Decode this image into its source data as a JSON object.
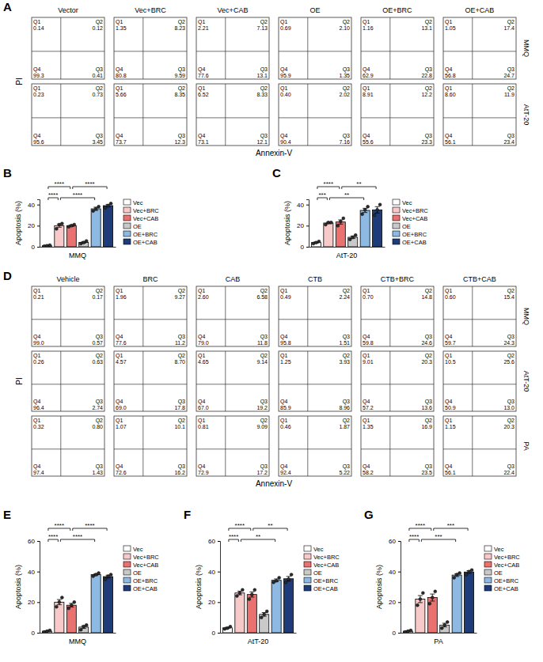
{
  "chart_data": [
    {
      "type": "bar",
      "panel": "B",
      "x_label": "MMQ",
      "y_label": "Apoptosis (%)",
      "categories": [
        "Vec",
        "Vec+BRC",
        "Vec+CAB",
        "OE",
        "OE+BRC",
        "OE+CAB"
      ],
      "colors": [
        "#ffffff",
        "#f7c9c9",
        "#e9716f",
        "#c9c9c9",
        "#8db9e2",
        "#1f3c7a"
      ],
      "values": [
        1.0,
        20,
        20,
        4.2,
        36,
        39
      ],
      "errors": [
        0.4,
        1.5,
        0.8,
        0.8,
        1.5,
        1.2
      ],
      "points": [
        [
          0.5,
          1.0,
          1.5
        ],
        [
          17,
          21,
          22
        ],
        [
          19,
          20,
          21
        ],
        [
          3,
          4,
          5.5
        ],
        [
          34,
          36,
          38
        ],
        [
          37,
          39,
          41
        ]
      ],
      "ylim": [
        0,
        45
      ],
      "yticks": [
        0,
        20,
        40
      ],
      "legend": "right",
      "tick_labels": "y",
      "comparisons": [
        {
          "pair": [
            0,
            1
          ],
          "label": "****"
        },
        {
          "pair": [
            1,
            4
          ],
          "label": "****"
        },
        {
          "pair": [
            0,
            2
          ],
          "label": "****"
        },
        {
          "pair": [
            2,
            5
          ],
          "label": "****"
        }
      ]
    },
    {
      "type": "bar",
      "panel": "C",
      "x_label": "AtT-20",
      "y_label": "Apoptosis (%)",
      "categories": [
        "Vec",
        "Vec+BRC",
        "Vec+CAB",
        "OE",
        "OE+BRC",
        "OE+CAB"
      ],
      "colors": [
        "#ffffff",
        "#f7c9c9",
        "#e9716f",
        "#c9c9c9",
        "#8db9e2",
        "#1f3c7a"
      ],
      "values": [
        4,
        22.5,
        23.5,
        9,
        34.5,
        35
      ],
      "errors": [
        0.6,
        0.7,
        2,
        1.2,
        2,
        3
      ],
      "points": [
        [
          3,
          4,
          5
        ],
        [
          21,
          23,
          23
        ],
        [
          20,
          24,
          27
        ],
        [
          7,
          9,
          11
        ],
        [
          31,
          35,
          38
        ],
        [
          30,
          35,
          40
        ]
      ],
      "ylim": [
        0,
        45
      ],
      "yticks": [
        0,
        20,
        40
      ],
      "legend": "right",
      "tick_labels": "y",
      "comparisons": [
        {
          "pair": [
            0,
            1
          ],
          "label": "***"
        },
        {
          "pair": [
            1,
            4
          ],
          "label": "**"
        },
        {
          "pair": [
            0,
            2
          ],
          "label": "****"
        },
        {
          "pair": [
            2,
            5
          ],
          "label": "**"
        }
      ]
    },
    {
      "type": "bar",
      "panel": "E",
      "x_label": "MMQ",
      "y_label": "Apoptosis (%)",
      "categories": [
        "Vec",
        "Vec+BRC",
        "Vec+CAB",
        "OE",
        "OE+BRC",
        "OE+CAB"
      ],
      "colors": [
        "#ffffff",
        "#f7c9c9",
        "#e9716f",
        "#c9c9c9",
        "#8db9e2",
        "#1f3c7a"
      ],
      "values": [
        1.0,
        20,
        18,
        3.7,
        38,
        36.7
      ],
      "errors": [
        0.3,
        1.7,
        1.2,
        0.9,
        0.6,
        0.9
      ],
      "points": [
        [
          0.5,
          1.0,
          1.5
        ],
        [
          17,
          20,
          23
        ],
        [
          16,
          18,
          20
        ],
        [
          2,
          4,
          5
        ],
        [
          37,
          38,
          39
        ],
        [
          35,
          37,
          38
        ]
      ],
      "ylim": [
        0,
        60
      ],
      "yticks": [
        0,
        20,
        40,
        60
      ],
      "legend": "right",
      "tick_labels": "y",
      "comparisons": [
        {
          "pair": [
            0,
            1
          ],
          "label": "****"
        },
        {
          "pair": [
            1,
            4
          ],
          "label": "****"
        },
        {
          "pair": [
            0,
            2
          ],
          "label": "****"
        },
        {
          "pair": [
            2,
            5
          ],
          "label": "****"
        }
      ]
    },
    {
      "type": "bar",
      "panel": "F",
      "x_label": "AtT-20",
      "y_label": "Apoptosis (%)",
      "categories": [
        "Vec",
        "Vec+BRC",
        "Vec+CAB",
        "OE",
        "OE+BRC",
        "OE+CAB"
      ],
      "colors": [
        "#ffffff",
        "#f7c9c9",
        "#e9716f",
        "#c9c9c9",
        "#8db9e2",
        "#1f3c7a"
      ],
      "values": [
        3.2,
        26,
        25,
        12,
        34.3,
        35.3
      ],
      "errors": [
        0.4,
        1.2,
        1.7,
        1.2,
        0.9,
        1.5
      ],
      "points": [
        [
          2.5,
          3,
          4
        ],
        [
          24,
          26,
          28
        ],
        [
          22,
          25,
          28
        ],
        [
          10,
          12,
          14
        ],
        [
          33,
          34,
          36
        ],
        [
          33,
          35,
          38
        ]
      ],
      "ylim": [
        0,
        60
      ],
      "yticks": [
        0,
        20,
        40,
        60
      ],
      "legend": "right",
      "tick_labels": "y",
      "comparisons": [
        {
          "pair": [
            0,
            1
          ],
          "label": "****"
        },
        {
          "pair": [
            1,
            4
          ],
          "label": "**"
        },
        {
          "pair": [
            0,
            2
          ],
          "label": "****"
        },
        {
          "pair": [
            2,
            5
          ],
          "label": "**"
        }
      ]
    },
    {
      "type": "bar",
      "panel": "G",
      "x_label": "PA",
      "y_label": "Apoptosis (%)",
      "categories": [
        "Vec",
        "Vec+BRC",
        "Vec+CAB",
        "OE",
        "OE+BRC",
        "OE+CAB"
      ],
      "colors": [
        "#ffffff",
        "#f7c9c9",
        "#e9716f",
        "#c9c9c9",
        "#8db9e2",
        "#1f3c7a"
      ],
      "values": [
        1.0,
        22,
        23,
        5,
        37.7,
        39.7
      ],
      "errors": [
        0.3,
        2.3,
        2.3,
        1.2,
        0.9,
        0.9
      ],
      "points": [
        [
          0.5,
          1.0,
          1.5
        ],
        [
          18,
          22,
          26
        ],
        [
          19,
          23,
          27
        ],
        [
          3,
          5,
          7
        ],
        [
          36,
          38,
          39
        ],
        [
          38,
          40,
          41
        ]
      ],
      "ylim": [
        0,
        60
      ],
      "yticks": [
        0,
        20,
        40,
        60
      ],
      "legend": "right",
      "tick_labels": "y",
      "comparisons": [
        {
          "pair": [
            0,
            1
          ],
          "label": "****"
        },
        {
          "pair": [
            1,
            4
          ],
          "label": "***"
        },
        {
          "pair": [
            0,
            2
          ],
          "label": "****"
        },
        {
          "pair": [
            2,
            5
          ],
          "label": "***"
        }
      ]
    }
  ],
  "flow_panels": [
    {
      "panel": "A",
      "x_label": "Annexin-V",
      "y_label": "PI",
      "quadrant_labels": [
        "Q1",
        "Q2",
        "Q3",
        "Q4"
      ],
      "columns": [
        "Vector",
        "Vec+BRC",
        "Vec+CAB",
        "OE",
        "OE+BRC",
        "OE+CAB"
      ],
      "rows": [
        {
          "name": "MMQ",
          "cells": [
            [
              0.14,
              0.12,
              0.41,
              99.3
            ],
            [
              1.35,
              8.23,
              9.59,
              80.8
            ],
            [
              2.21,
              7.13,
              13.1,
              77.6
            ],
            [
              0.69,
              {
                "value": 2.1,
                "label": "2.10"
              },
              1.35,
              95.9
            ],
            [
              1.16,
              13.1,
              22.8,
              62.9
            ],
            [
              1.05,
              17.4,
              24.7,
              56.8
            ]
          ]
        },
        {
          "name": "AtT-20",
          "cells": [
            [
              0.23,
              0.73,
              3.45,
              95.6
            ],
            [
              5.66,
              8.35,
              12.3,
              73.7
            ],
            [
              6.52,
              8.33,
              12.1,
              73.1
            ],
            [
              {
                "value": 0.4,
                "label": "0.40"
              },
              2.02,
              7.16,
              90.4
            ],
            [
              8.91,
              12.2,
              23.3,
              55.6
            ],
            [
              {
                "value": 8.6,
                "label": "8.60"
              },
              11.9,
              23.4,
              56.1
            ]
          ]
        }
      ]
    },
    {
      "panel": "D",
      "x_label": "Annexin-V",
      "y_label": "PI",
      "quadrant_labels": [
        "Q1",
        "Q2",
        "Q3",
        "Q4"
      ],
      "columns": [
        "Vehicle",
        "BRC",
        "CAB",
        "CTB",
        "CTB+BRC",
        "CTB+CAB"
      ],
      "rows": [
        {
          "name": "MMQ",
          "cells": [
            [
              0.21,
              0.17,
              0.57,
              {
                "value": 99,
                "label": "99.0"
              }
            ],
            [
              1.96,
              9.27,
              11.2,
              77.6
            ],
            [
              {
                "value": 2.6,
                "label": "2.60"
              },
              6.58,
              11.8,
              {
                "value": 79,
                "label": "79.0"
              }
            ],
            [
              0.49,
              2.24,
              1.51,
              95.8
            ],
            [
              {
                "value": 0.7,
                "label": "0.70"
              },
              14.8,
              24.6,
              59.8
            ],
            [
              {
                "value": 0.6,
                "label": "0.60"
              },
              15.4,
              24.3,
              59.7
            ]
          ]
        },
        {
          "name": "AtT-20",
          "cells": [
            [
              0.26,
              0.63,
              2.74,
              96.4
            ],
            [
              4.57,
              {
                "value": 8.7,
                "label": "8.70"
              },
              17.8,
              {
                "value": 69,
                "label": "69.0"
              }
            ],
            [
              4.65,
              9.14,
              19.2,
              {
                "value": 67,
                "label": "67.0"
              }
            ],
            [
              1.25,
              3.93,
              8.96,
              85.9
            ],
            [
              9.01,
              20.3,
              13.6,
              57.2
            ],
            [
              10.5,
              25.6,
              {
                "value": 13,
                "label": "13.0"
              },
              50.9
            ]
          ]
        },
        {
          "name": "PA",
          "cells": [
            [
              0.32,
              {
                "value": 0.8,
                "label": "0.80"
              },
              1.43,
              97.4
            ],
            [
              1.07,
              10.1,
              16.2,
              72.6
            ],
            [
              0.81,
              9.09,
              17.2,
              72.9
            ],
            [
              0.46,
              1.87,
              5.22,
              92.4
            ],
            [
              1.35,
              16.9,
              23.5,
              58.2
            ],
            [
              1.15,
              20.3,
              22.4,
              56.1
            ]
          ]
        }
      ]
    }
  ]
}
